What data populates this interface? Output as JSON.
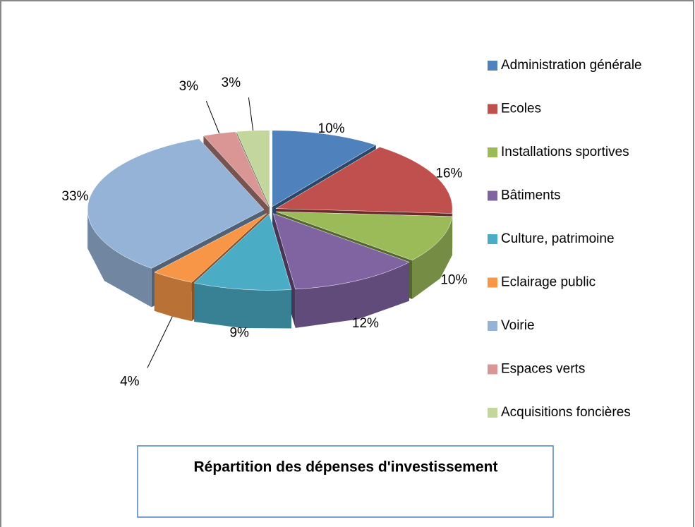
{
  "chart_data": {
    "type": "pie",
    "title": "Répartition des dépenses d'investissement",
    "categories": [
      "Administration générale",
      "Ecoles",
      "Installations sportives",
      "Bâtiments",
      "Culture, patrimoine",
      "Eclairage public",
      "Voirie",
      "Espaces verts",
      "Acquisitions foncières"
    ],
    "values": [
      10,
      16,
      10,
      12,
      9,
      4,
      33,
      3,
      3
    ],
    "value_labels": [
      "10%",
      "16%",
      "10%",
      "12%",
      "9%",
      "4%",
      "33%",
      "3%",
      "3%"
    ],
    "colors": [
      "#4f81bd",
      "#c0504d",
      "#9bbb59",
      "#8064a2",
      "#4bacc6",
      "#f79646",
      "#95b3d7",
      "#d99694",
      "#c3d69b"
    ],
    "legend": "right"
  }
}
